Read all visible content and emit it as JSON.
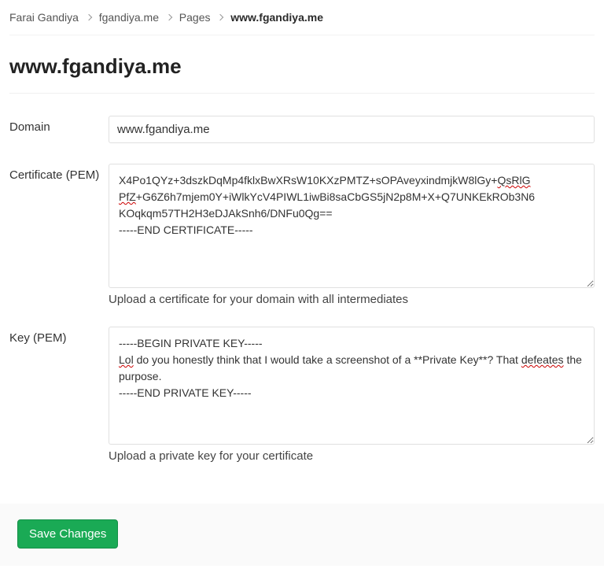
{
  "breadcrumb": {
    "items": [
      {
        "label": "Farai Gandiya"
      },
      {
        "label": "fgandiya.me"
      },
      {
        "label": "Pages"
      }
    ],
    "current": "www.fgandiya.me"
  },
  "page": {
    "title": "www.fgandiya.me"
  },
  "form": {
    "domain": {
      "label": "Domain",
      "value": "www.fgandiya.me"
    },
    "certificate": {
      "label": "Certificate (PEM)",
      "value_html": "X4Po1QYz+3dszkDqMp4fklxBwXRsW10KXzPMTZ+sOPAveyxindmjkW8lGy+<span class=\"spell-err\">QsRlG</span>\n<span class=\"spell-err\">PfZ</span>+G6Z6h7mjem0Y+iWlkYcV4PIWL1iwBi8saCbGS5jN2p8M+X+Q7UNKEkROb3N6\nKOqkqm57TH2H3eDJAkSnh6/DNFu0Qg==\n-----END CERTIFICATE-----",
      "help": "Upload a certificate for your domain with all intermediates",
      "rows": 7
    },
    "key": {
      "label": "Key (PEM)",
      "value_html": "-----BEGIN PRIVATE KEY-----\n<span class=\"spell-err\">Lol</span> do you honestly think that I would take a screenshot of a **Private Key**? That <span class=\"spell-err\">defeates</span> the purpose.\n-----END PRIVATE KEY-----",
      "help": "Upload a private key for your certificate",
      "rows": 7
    },
    "submit": {
      "label": "Save Changes"
    }
  },
  "colors": {
    "button_bg": "#1aaa55",
    "button_border": "#168f48",
    "border": "#e0e0e0",
    "footer_bg": "#fafafa"
  }
}
